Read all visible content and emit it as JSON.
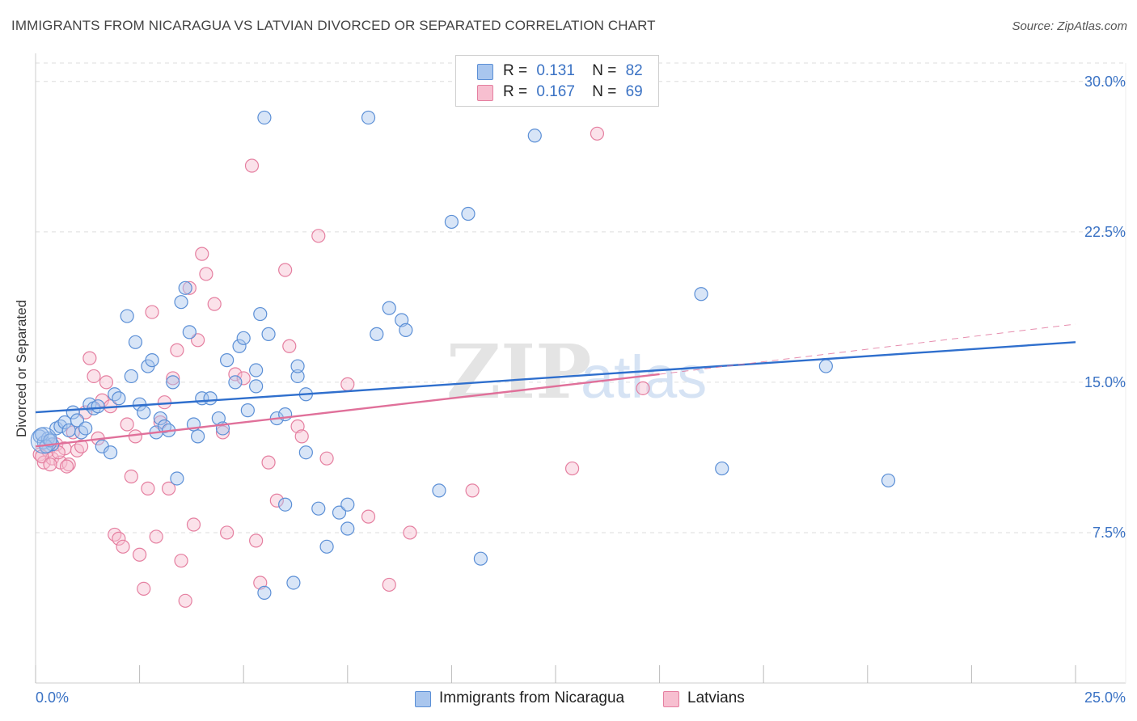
{
  "header": {
    "title": "IMMIGRANTS FROM NICARAGUA VS LATVIAN DIVORCED OR SEPARATED CORRELATION CHART",
    "source": "Source: ZipAtlas.com"
  },
  "legend": {
    "series1": {
      "r_label": "R =",
      "r_value": "0.131",
      "n_label": "N =",
      "n_value": "82"
    },
    "series2": {
      "r_label": "R =",
      "r_value": "0.167",
      "n_label": "N =",
      "n_value": "69"
    }
  },
  "bottom_legend": {
    "series1": "Immigrants from Nicaragua",
    "series2": "Latvians"
  },
  "watermark": {
    "zip": "ZIP",
    "atlas": "atlas"
  },
  "colors": {
    "blue_fill": "#a9c6ee",
    "blue_stroke": "#5b8fd6",
    "blue_line": "#2f6fcd",
    "pink_fill": "#f7bfd0",
    "pink_stroke": "#e57fa0",
    "pink_line": "#e0709a",
    "grid": "#dddddd",
    "tick_text": "#3a72c4"
  },
  "chart_data": {
    "type": "scatter",
    "title": "IMMIGRANTS FROM NICARAGUA VS LATVIAN DIVORCED OR SEPARATED CORRELATION CHART",
    "xlabel": "",
    "ylabel": "Divorced or Separated",
    "xlim": [
      0,
      25
    ],
    "ylim": [
      0,
      31
    ],
    "x_tick_labels": [
      "0.0%",
      "25.0%"
    ],
    "y_ticks": [
      7.5,
      15.0,
      22.5,
      30.0
    ],
    "y_tick_labels": [
      "7.5%",
      "15.0%",
      "22.5%",
      "30.0%"
    ],
    "grid": true,
    "legend_position": "top-center",
    "series": [
      {
        "name": "Immigrants from Nicaragua",
        "r": 0.131,
        "n": 82,
        "trend": {
          "x": [
            0,
            25
          ],
          "y": [
            13.5,
            17.0
          ]
        },
        "points": [
          [
            0.1,
            12.3
          ],
          [
            0.2,
            12.0
          ],
          [
            0.3,
            12.2
          ],
          [
            0.4,
            11.9
          ],
          [
            0.5,
            12.7
          ],
          [
            0.6,
            12.8
          ],
          [
            0.7,
            13.0
          ],
          [
            0.8,
            12.6
          ],
          [
            0.9,
            13.5
          ],
          [
            1.0,
            13.1
          ],
          [
            1.1,
            12.5
          ],
          [
            1.2,
            12.7
          ],
          [
            1.3,
            13.9
          ],
          [
            1.4,
            13.7
          ],
          [
            1.5,
            13.8
          ],
          [
            1.6,
            11.8
          ],
          [
            1.8,
            11.5
          ],
          [
            1.9,
            14.4
          ],
          [
            2.0,
            14.2
          ],
          [
            2.2,
            18.3
          ],
          [
            2.3,
            15.3
          ],
          [
            2.4,
            17.0
          ],
          [
            2.5,
            13.9
          ],
          [
            2.6,
            13.5
          ],
          [
            2.7,
            15.8
          ],
          [
            2.8,
            16.1
          ],
          [
            2.9,
            12.5
          ],
          [
            3.0,
            13.2
          ],
          [
            3.1,
            12.8
          ],
          [
            3.2,
            12.6
          ],
          [
            3.3,
            15.0
          ],
          [
            3.4,
            10.2
          ],
          [
            3.5,
            19.0
          ],
          [
            3.6,
            19.7
          ],
          [
            3.7,
            17.5
          ],
          [
            3.8,
            12.9
          ],
          [
            3.9,
            12.3
          ],
          [
            4.0,
            14.2
          ],
          [
            4.2,
            14.2
          ],
          [
            4.4,
            13.2
          ],
          [
            4.5,
            12.7
          ],
          [
            4.6,
            16.1
          ],
          [
            4.8,
            15.0
          ],
          [
            4.9,
            16.8
          ],
          [
            5.0,
            17.2
          ],
          [
            5.1,
            13.6
          ],
          [
            5.3,
            15.6
          ],
          [
            5.3,
            14.8
          ],
          [
            5.4,
            18.4
          ],
          [
            5.5,
            28.2
          ],
          [
            5.5,
            4.5
          ],
          [
            5.6,
            17.4
          ],
          [
            5.8,
            13.2
          ],
          [
            6.0,
            8.9
          ],
          [
            6.0,
            13.4
          ],
          [
            6.2,
            5.0
          ],
          [
            6.3,
            15.3
          ],
          [
            6.3,
            15.8
          ],
          [
            6.5,
            14.4
          ],
          [
            6.5,
            11.5
          ],
          [
            6.8,
            8.7
          ],
          [
            7.0,
            6.8
          ],
          [
            7.3,
            8.5
          ],
          [
            7.5,
            8.9
          ],
          [
            7.5,
            7.7
          ],
          [
            8.0,
            28.2
          ],
          [
            8.2,
            17.4
          ],
          [
            8.5,
            18.7
          ],
          [
            8.8,
            18.1
          ],
          [
            8.9,
            17.6
          ],
          [
            9.7,
            9.6
          ],
          [
            10.0,
            23.0
          ],
          [
            10.4,
            23.4
          ],
          [
            10.7,
            6.2
          ],
          [
            12.0,
            27.3
          ],
          [
            16.0,
            19.4
          ],
          [
            16.5,
            10.7
          ],
          [
            19.0,
            15.8
          ],
          [
            20.5,
            10.1
          ],
          [
            0.15,
            12.4
          ],
          [
            0.25,
            11.8
          ],
          [
            0.35,
            12.1
          ]
        ]
      },
      {
        "name": "Latvians",
        "r": 0.167,
        "n": 69,
        "trend": {
          "x": [
            0,
            15
          ],
          "y": [
            11.8,
            15.4
          ]
        },
        "trend_dashed": {
          "x": [
            15,
            25
          ],
          "y": [
            15.4,
            17.9
          ]
        },
        "points": [
          [
            0.1,
            11.4
          ],
          [
            0.2,
            11.0
          ],
          [
            0.3,
            11.6
          ],
          [
            0.4,
            11.2
          ],
          [
            0.5,
            11.9
          ],
          [
            0.6,
            11.0
          ],
          [
            0.7,
            11.7
          ],
          [
            0.8,
            10.9
          ],
          [
            0.9,
            12.5
          ],
          [
            1.0,
            11.6
          ],
          [
            1.1,
            11.8
          ],
          [
            1.2,
            13.5
          ],
          [
            1.3,
            16.2
          ],
          [
            1.4,
            15.3
          ],
          [
            1.5,
            12.2
          ],
          [
            1.6,
            14.1
          ],
          [
            1.7,
            15.0
          ],
          [
            1.8,
            13.8
          ],
          [
            1.9,
            7.4
          ],
          [
            2.0,
            7.2
          ],
          [
            2.1,
            6.8
          ],
          [
            2.2,
            12.9
          ],
          [
            2.3,
            10.3
          ],
          [
            2.4,
            12.3
          ],
          [
            2.5,
            6.4
          ],
          [
            2.6,
            4.7
          ],
          [
            2.7,
            9.7
          ],
          [
            2.8,
            18.5
          ],
          [
            2.9,
            7.3
          ],
          [
            3.0,
            13.0
          ],
          [
            3.1,
            14.0
          ],
          [
            3.2,
            9.7
          ],
          [
            3.3,
            15.2
          ],
          [
            3.4,
            16.6
          ],
          [
            3.5,
            6.1
          ],
          [
            3.6,
            4.1
          ],
          [
            3.7,
            19.7
          ],
          [
            3.8,
            7.9
          ],
          [
            3.9,
            17.1
          ],
          [
            4.0,
            21.4
          ],
          [
            4.1,
            20.4
          ],
          [
            4.3,
            18.9
          ],
          [
            4.5,
            12.5
          ],
          [
            4.6,
            7.5
          ],
          [
            4.8,
            15.4
          ],
          [
            5.0,
            15.2
          ],
          [
            5.2,
            25.8
          ],
          [
            5.3,
            7.1
          ],
          [
            5.4,
            5.0
          ],
          [
            5.6,
            11.0
          ],
          [
            5.8,
            9.1
          ],
          [
            6.0,
            20.6
          ],
          [
            6.1,
            16.8
          ],
          [
            6.3,
            12.8
          ],
          [
            6.4,
            12.3
          ],
          [
            6.8,
            22.3
          ],
          [
            7.0,
            11.2
          ],
          [
            7.5,
            14.9
          ],
          [
            8.0,
            8.3
          ],
          [
            8.5,
            4.9
          ],
          [
            9.0,
            7.5
          ],
          [
            10.5,
            9.6
          ],
          [
            12.9,
            10.7
          ],
          [
            13.5,
            27.4
          ],
          [
            14.6,
            14.7
          ],
          [
            0.15,
            11.3
          ],
          [
            0.35,
            10.9
          ],
          [
            0.55,
            11.5
          ],
          [
            0.75,
            10.8
          ]
        ]
      }
    ]
  }
}
